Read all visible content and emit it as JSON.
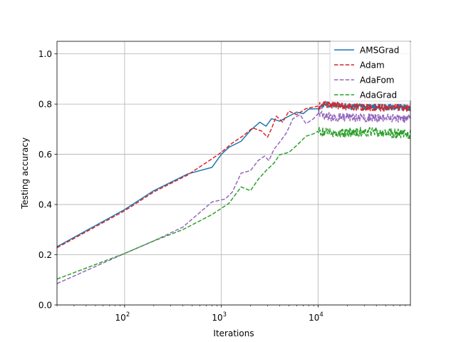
{
  "chart_data": {
    "type": "line",
    "xlabel": "Iterations",
    "ylabel": "Testing accuracy",
    "x_scale": "log",
    "xlim": [
      20,
      90000
    ],
    "ylim": [
      0.0,
      1.05
    ],
    "x_ticks": [
      {
        "value": 100,
        "base": "10",
        "exp": "2"
      },
      {
        "value": 1000,
        "base": "10",
        "exp": "3"
      },
      {
        "value": 10000,
        "base": "10",
        "exp": "4"
      }
    ],
    "y_ticks": [
      {
        "value": 0.0,
        "label": "0.0"
      },
      {
        "value": 0.2,
        "label": "0.2"
      },
      {
        "value": 0.4,
        "label": "0.4"
      },
      {
        "value": 0.6,
        "label": "0.6"
      },
      {
        "value": 0.8,
        "label": "0.8"
      },
      {
        "value": 1.0,
        "label": "1.0"
      }
    ],
    "grid": true,
    "legend_position": "top-right",
    "series": [
      {
        "name": "AMSGrad",
        "color": "#1f77b4",
        "dash": "solid",
        "noise_amplitude": 0.012,
        "points": [
          [
            20,
            0.232
          ],
          [
            100,
            0.38
          ],
          [
            200,
            0.455
          ],
          [
            450,
            0.522
          ],
          [
            800,
            0.548
          ],
          [
            1000,
            0.6
          ],
          [
            1200,
            0.628
          ],
          [
            1600,
            0.652
          ],
          [
            2000,
            0.695
          ],
          [
            2500,
            0.728
          ],
          [
            2900,
            0.712
          ],
          [
            3300,
            0.742
          ],
          [
            4000,
            0.732
          ],
          [
            5000,
            0.752
          ],
          [
            6000,
            0.768
          ],
          [
            7000,
            0.762
          ],
          [
            8000,
            0.78
          ],
          [
            10000,
            0.782
          ],
          [
            12000,
            0.8
          ],
          [
            20000,
            0.79
          ],
          [
            40000,
            0.788
          ],
          [
            90000,
            0.786
          ]
        ]
      },
      {
        "name": "Adam",
        "color": "#d62728",
        "dash": "dashed",
        "noise_amplitude": 0.014,
        "points": [
          [
            20,
            0.228
          ],
          [
            100,
            0.375
          ],
          [
            200,
            0.45
          ],
          [
            450,
            0.518
          ],
          [
            800,
            0.582
          ],
          [
            1000,
            0.608
          ],
          [
            1300,
            0.645
          ],
          [
            1700,
            0.675
          ],
          [
            2100,
            0.705
          ],
          [
            2600,
            0.693
          ],
          [
            3000,
            0.668
          ],
          [
            3300,
            0.702
          ],
          [
            3700,
            0.752
          ],
          [
            4300,
            0.728
          ],
          [
            5000,
            0.772
          ],
          [
            6000,
            0.758
          ],
          [
            7500,
            0.782
          ],
          [
            10000,
            0.792
          ],
          [
            12000,
            0.8
          ],
          [
            20000,
            0.79
          ],
          [
            40000,
            0.785
          ],
          [
            90000,
            0.785
          ]
        ]
      },
      {
        "name": "AdaFom",
        "color": "#9467bd",
        "dash": "dashed",
        "noise_amplitude": 0.016,
        "points": [
          [
            20,
            0.085
          ],
          [
            100,
            0.205
          ],
          [
            200,
            0.255
          ],
          [
            400,
            0.31
          ],
          [
            800,
            0.41
          ],
          [
            1100,
            0.422
          ],
          [
            1300,
            0.45
          ],
          [
            1600,
            0.525
          ],
          [
            2000,
            0.535
          ],
          [
            2400,
            0.575
          ],
          [
            2800,
            0.593
          ],
          [
            3100,
            0.575
          ],
          [
            3500,
            0.62
          ],
          [
            4000,
            0.648
          ],
          [
            4700,
            0.685
          ],
          [
            5500,
            0.742
          ],
          [
            6500,
            0.758
          ],
          [
            7500,
            0.722
          ],
          [
            9000,
            0.742
          ],
          [
            10000,
            0.762
          ],
          [
            14000,
            0.748
          ],
          [
            30000,
            0.745
          ],
          [
            90000,
            0.742
          ]
        ]
      },
      {
        "name": "AdaGrad",
        "color": "#2ca02c",
        "dash": "dashed",
        "noise_amplitude": 0.018,
        "points": [
          [
            20,
            0.103
          ],
          [
            100,
            0.205
          ],
          [
            200,
            0.255
          ],
          [
            400,
            0.3
          ],
          [
            800,
            0.36
          ],
          [
            1200,
            0.405
          ],
          [
            1600,
            0.47
          ],
          [
            2000,
            0.455
          ],
          [
            2400,
            0.5
          ],
          [
            2900,
            0.535
          ],
          [
            3500,
            0.565
          ],
          [
            4000,
            0.598
          ],
          [
            5000,
            0.608
          ],
          [
            6000,
            0.635
          ],
          [
            7500,
            0.672
          ],
          [
            9000,
            0.682
          ],
          [
            10000,
            0.692
          ],
          [
            14000,
            0.685
          ],
          [
            30000,
            0.69
          ],
          [
            90000,
            0.68
          ]
        ]
      }
    ]
  }
}
